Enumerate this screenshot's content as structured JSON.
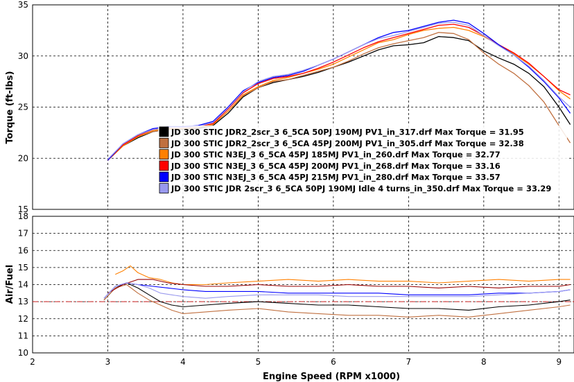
{
  "chart_data": [
    {
      "type": "line",
      "name": "torque",
      "ylabel": "Torque (ft-lbs)",
      "xlim": [
        2,
        9.2
      ],
      "ylim": [
        15,
        35
      ],
      "yticks": [
        15,
        20,
        25,
        30,
        35
      ],
      "grid": true,
      "legend_position": "center-left",
      "series": [
        {
          "name": "JD 300 STIC JDR2_2scr_3 6_5CA 50PJ 190MJ PV1_in_317.drf Max Torque = 31.95",
          "color": "#000000",
          "x": [
            3.0,
            3.2,
            3.4,
            3.6,
            3.8,
            4.0,
            4.2,
            4.4,
            4.6,
            4.8,
            5.0,
            5.2,
            5.4,
            5.6,
            5.8,
            6.0,
            6.2,
            6.4,
            6.6,
            6.8,
            7.0,
            7.2,
            7.4,
            7.6,
            7.8,
            8.0,
            8.2,
            8.4,
            8.6,
            8.8,
            9.0,
            9.15
          ],
          "y": [
            19.8,
            21.2,
            22.0,
            22.6,
            22.8,
            22.8,
            22.9,
            23.2,
            24.4,
            26.0,
            26.9,
            27.4,
            27.7,
            28.0,
            28.4,
            28.9,
            29.4,
            30.0,
            30.6,
            31.0,
            31.1,
            31.3,
            31.9,
            31.8,
            31.5,
            30.5,
            29.8,
            29.2,
            28.3,
            27.0,
            25.0,
            23.3
          ]
        },
        {
          "name": "JD 300 STIC JDR2_2scr_3 6_5CA 45PJ 200MJ PV1_in_305.drf Max Torque = 32.38",
          "color": "#c07040",
          "x": [
            3.0,
            3.2,
            3.4,
            3.6,
            3.8,
            4.0,
            4.2,
            4.4,
            4.6,
            4.8,
            5.0,
            5.2,
            5.4,
            5.6,
            5.8,
            6.0,
            6.2,
            6.4,
            6.6,
            6.8,
            7.0,
            7.2,
            7.4,
            7.6,
            7.8,
            8.0,
            8.2,
            8.4,
            8.6,
            8.8,
            9.0,
            9.15
          ],
          "y": [
            19.8,
            21.3,
            22.1,
            22.6,
            22.8,
            22.9,
            23.0,
            23.3,
            24.6,
            26.1,
            26.9,
            27.5,
            27.7,
            28.1,
            28.5,
            28.9,
            29.5,
            30.2,
            30.8,
            31.2,
            31.5,
            31.8,
            32.3,
            32.2,
            31.6,
            30.3,
            29.2,
            28.3,
            27.1,
            25.5,
            23.2,
            21.5
          ]
        },
        {
          "name": "JD 300 STIC N3EJ_3 6_5CA 45PJ 185MJ PV1_in_260.drf Max Torque = 32.77",
          "color": "#ff8000",
          "x": [
            3.0,
            3.2,
            3.4,
            3.6,
            3.8,
            4.0,
            4.2,
            4.4,
            4.6,
            4.8,
            5.0,
            5.2,
            5.4,
            5.6,
            5.8,
            6.0,
            6.2,
            6.4,
            6.6,
            6.8,
            7.0,
            7.2,
            7.4,
            7.6,
            7.8,
            8.0,
            8.2,
            8.4,
            8.6,
            8.8,
            9.0,
            9.15
          ],
          "y": [
            19.8,
            21.2,
            22.1,
            22.7,
            22.9,
            22.9,
            23.0,
            23.3,
            24.6,
            26.2,
            27.0,
            27.6,
            27.9,
            28.3,
            28.7,
            29.2,
            29.9,
            30.6,
            31.3,
            31.6,
            32.1,
            32.5,
            32.7,
            32.8,
            32.5,
            31.9,
            31.1,
            30.2,
            29.2,
            28.0,
            26.6,
            25.8
          ]
        },
        {
          "name": "JD 300 STIC N3EJ_3 6_5CA 45PJ 200MJ PV1_in_268.drf Max Torque = 33.16",
          "color": "#ff0000",
          "x": [
            3.0,
            3.2,
            3.4,
            3.6,
            3.8,
            4.0,
            4.2,
            4.4,
            4.6,
            4.8,
            5.0,
            5.2,
            5.4,
            5.6,
            5.8,
            6.0,
            6.2,
            6.4,
            6.6,
            6.8,
            7.0,
            7.2,
            7.4,
            7.6,
            7.8,
            8.0,
            8.2,
            8.4,
            8.6,
            8.8,
            9.0,
            9.15
          ],
          "y": [
            19.8,
            21.3,
            22.2,
            22.8,
            23.0,
            23.0,
            23.1,
            23.4,
            24.8,
            26.4,
            27.3,
            27.8,
            28.0,
            28.3,
            28.8,
            29.4,
            30.1,
            30.8,
            31.4,
            31.8,
            32.2,
            32.6,
            33.0,
            33.1,
            32.8,
            32.0,
            31.1,
            30.3,
            29.3,
            28.0,
            26.7,
            26.2
          ]
        },
        {
          "name": "JD 300 STIC N3EJ_3 6_5CA 45PJ 215MJ PV1_in_280.drf Max Torque = 33.57",
          "color": "#0000ff",
          "x": [
            3.0,
            3.2,
            3.4,
            3.6,
            3.8,
            4.0,
            4.2,
            4.4,
            4.6,
            4.8,
            5.0,
            5.2,
            5.4,
            5.6,
            5.8,
            6.0,
            6.2,
            6.4,
            6.6,
            6.8,
            7.0,
            7.2,
            7.4,
            7.6,
            7.8,
            8.0,
            8.2,
            8.4,
            8.6,
            8.8,
            9.0,
            9.15
          ],
          "y": [
            19.8,
            21.4,
            22.3,
            22.9,
            23.1,
            23.1,
            23.2,
            23.6,
            25.0,
            26.6,
            27.4,
            27.9,
            28.1,
            28.5,
            29.1,
            29.7,
            30.4,
            31.1,
            31.8,
            32.3,
            32.5,
            32.9,
            33.3,
            33.5,
            33.2,
            32.2,
            31.1,
            30.1,
            28.9,
            27.5,
            25.9,
            24.4
          ]
        },
        {
          "name": "JD 300 STIC JDR 2scr_3 6_5CA 50PJ 190MJ Idle 4 turns_in_350.drf Max Torque = 33.29",
          "color": "#9999ee",
          "x": [
            3.0,
            3.2,
            3.4,
            3.6,
            3.8,
            4.0,
            4.2,
            4.4,
            4.6,
            4.8,
            5.0,
            5.2,
            5.4,
            5.6,
            5.8,
            6.0,
            6.2,
            6.4,
            6.6,
            6.8,
            7.0,
            7.2,
            7.4,
            7.6,
            7.8,
            8.0,
            8.2,
            8.4,
            8.6,
            8.8,
            9.0,
            9.15
          ],
          "y": [
            19.9,
            21.4,
            22.3,
            22.8,
            23.0,
            23.0,
            23.1,
            23.5,
            24.9,
            26.5,
            27.5,
            28.0,
            28.2,
            28.6,
            29.1,
            29.7,
            30.4,
            31.1,
            31.7,
            32.0,
            32.4,
            32.8,
            33.2,
            33.3,
            33.0,
            32.0,
            31.0,
            30.1,
            29.0,
            27.6,
            26.0,
            25.0
          ]
        }
      ]
    },
    {
      "type": "line",
      "name": "air-fuel",
      "ylabel": "Air/Fuel",
      "xlabel": "Engine Speed (RPM x1000)",
      "xlim": [
        2,
        9.2
      ],
      "ylim": [
        10,
        18
      ],
      "xticks": [
        2,
        3,
        4,
        5,
        6,
        7,
        8,
        9
      ],
      "yticks": [
        10,
        11,
        12,
        13,
        14,
        15,
        16,
        17,
        18
      ],
      "grid": true,
      "reference_line": {
        "y": 13,
        "color": "#cc2222"
      },
      "series": [
        {
          "name": "in_317",
          "color": "#000000",
          "x": [
            2.95,
            3.1,
            3.25,
            3.4,
            3.55,
            3.7,
            3.85,
            4.0,
            4.3,
            4.6,
            5.0,
            5.4,
            5.8,
            6.2,
            6.6,
            7.0,
            7.4,
            7.8,
            8.2,
            8.6,
            9.0,
            9.15
          ],
          "y": [
            13.1,
            13.8,
            14.1,
            13.8,
            13.4,
            13.0,
            12.8,
            12.7,
            12.8,
            12.9,
            13.0,
            12.9,
            12.8,
            12.8,
            12.7,
            12.6,
            12.6,
            12.5,
            12.7,
            12.8,
            13.0,
            13.1
          ]
        },
        {
          "name": "in_305",
          "color": "#c07040",
          "x": [
            2.95,
            3.1,
            3.25,
            3.4,
            3.55,
            3.7,
            3.85,
            4.0,
            4.3,
            4.6,
            5.0,
            5.4,
            5.8,
            6.2,
            6.6,
            7.0,
            7.4,
            7.8,
            8.2,
            8.6,
            9.0,
            9.15
          ],
          "y": [
            13.1,
            13.8,
            14.0,
            13.5,
            13.1,
            12.8,
            12.5,
            12.3,
            12.4,
            12.5,
            12.6,
            12.4,
            12.3,
            12.2,
            12.2,
            12.1,
            12.2,
            12.1,
            12.3,
            12.5,
            12.7,
            12.8
          ]
        },
        {
          "name": "in_260",
          "color": "#ff8000",
          "x": [
            3.1,
            3.2,
            3.3,
            3.4,
            3.55,
            3.7,
            3.85,
            4.0,
            4.3,
            4.6,
            5.0,
            5.4,
            5.8,
            6.2,
            6.6,
            7.0,
            7.4,
            7.8,
            8.2,
            8.6,
            9.0,
            9.15
          ],
          "y": [
            14.6,
            14.8,
            15.1,
            14.7,
            14.4,
            14.3,
            14.1,
            14.0,
            14.0,
            14.1,
            14.2,
            14.3,
            14.2,
            14.3,
            14.2,
            14.2,
            14.1,
            14.2,
            14.3,
            14.2,
            14.3,
            14.3
          ]
        },
        {
          "name": "in_268",
          "color": "#990000",
          "x": [
            3.0,
            3.2,
            3.4,
            3.6,
            3.8,
            4.0,
            4.3,
            4.6,
            5.0,
            5.4,
            5.8,
            6.2,
            6.6,
            7.0,
            7.4,
            7.8,
            8.2,
            8.6,
            9.0,
            9.15
          ],
          "y": [
            13.5,
            14.0,
            14.3,
            14.3,
            14.1,
            14.0,
            13.9,
            13.9,
            14.0,
            13.9,
            13.9,
            14.0,
            13.9,
            13.9,
            13.8,
            13.9,
            13.8,
            13.9,
            13.9,
            14.0
          ]
        },
        {
          "name": "in_280",
          "color": "#0000ff",
          "x": [
            2.95,
            3.1,
            3.25,
            3.4,
            3.6,
            3.8,
            4.0,
            4.3,
            4.6,
            5.0,
            5.4,
            5.8,
            6.2,
            6.6,
            7.0,
            7.4,
            7.8,
            8.2,
            8.6,
            9.0,
            9.15
          ],
          "y": [
            13.2,
            13.9,
            14.1,
            14.0,
            13.9,
            13.8,
            13.7,
            13.6,
            13.6,
            13.6,
            13.5,
            13.5,
            13.5,
            13.5,
            13.4,
            13.4,
            13.4,
            13.5,
            13.5,
            13.6,
            13.7
          ]
        },
        {
          "name": "in_350",
          "color": "#9999ee",
          "x": [
            2.95,
            3.1,
            3.25,
            3.4,
            3.55,
            3.7,
            3.85,
            4.0,
            4.3,
            4.6,
            5.0,
            5.4,
            5.8,
            6.2,
            6.6,
            7.0,
            7.4,
            7.8,
            8.2,
            8.6,
            9.0,
            9.15
          ],
          "y": [
            13.2,
            13.9,
            14.1,
            14.0,
            13.8,
            13.5,
            13.4,
            13.3,
            13.2,
            13.3,
            13.4,
            13.4,
            13.4,
            13.3,
            13.3,
            13.3,
            13.3,
            13.3,
            13.4,
            13.5,
            13.6,
            13.7
          ]
        }
      ]
    }
  ]
}
